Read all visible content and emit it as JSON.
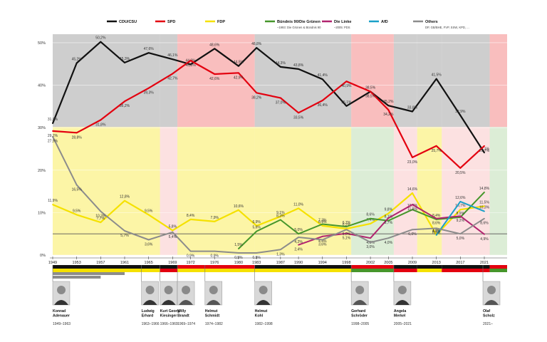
{
  "legend": [
    {
      "name": "CDU/CSU",
      "note": "",
      "color": "#111111"
    },
    {
      "name": "SPD",
      "note": "",
      "color": "#e3000f"
    },
    {
      "name": "FDP",
      "note": "",
      "color": "#f5e100"
    },
    {
      "name": "Bündnis 90/Die Grünen",
      "note": "–1993: Die Grünen & Bündnis 90",
      "color": "#46962b"
    },
    {
      "name": "Die Linke",
      "note": "–2005: PDS",
      "color": "#b1246f"
    },
    {
      "name": "AfD",
      "note": "",
      "color": "#1aa0c8"
    },
    {
      "name": "Others",
      "note": "DP, GB/BHE, FVP, SSW, KPD, ...",
      "color": "#8c8c8c"
    }
  ],
  "chart_data": {
    "type": "line",
    "years": [
      1949,
      1953,
      1957,
      1961,
      1965,
      1969,
      1972,
      1976,
      1980,
      1983,
      1987,
      1990,
      1994,
      1998,
      2002,
      2005,
      2009,
      2013,
      2017,
      2021
    ],
    "ylim": [
      0,
      52
    ],
    "yticks": [
      0,
      10,
      20,
      30,
      40,
      50
    ],
    "ytick_labels": [
      "0%",
      "10%",
      "20%",
      "30%",
      "40%",
      "50%"
    ],
    "threshold": 5,
    "series": [
      {
        "name": "CDU/CSU",
        "color": "#111111",
        "width": 2.2,
        "points": [
          [
            1949,
            31.0
          ],
          [
            1953,
            45.2
          ],
          [
            1957,
            50.2
          ],
          [
            1961,
            45.3
          ],
          [
            1965,
            47.6
          ],
          [
            1969,
            46.1
          ],
          [
            1972,
            44.9
          ],
          [
            1976,
            48.6
          ],
          [
            1980,
            44.5
          ],
          [
            1983,
            48.8
          ],
          [
            1987,
            44.3
          ],
          [
            1990,
            43.8
          ],
          [
            1994,
            41.4
          ],
          [
            1998,
            35.1
          ],
          [
            2002,
            38.5
          ],
          [
            2005,
            35.2
          ],
          [
            2009,
            33.8
          ],
          [
            2013,
            41.5
          ],
          [
            2017,
            32.9
          ],
          [
            2021,
            24.1
          ]
        ],
        "labels": [
          "31,0%",
          "45,2%",
          "50,2%",
          "45,3%",
          "47,6%",
          "46,1%",
          "44,9%",
          "48,6%",
          "44,5%",
          "48,8%",
          "44,3%",
          "43,8%",
          "41,4%",
          "35,1%",
          "38,5%",
          "35,2%",
          "33,8%",
          "41,5%",
          "32,9%",
          "24,1%"
        ]
      },
      {
        "name": "SPD",
        "color": "#e3000f",
        "width": 2.2,
        "points": [
          [
            1949,
            29.2
          ],
          [
            1953,
            28.8
          ],
          [
            1957,
            31.8
          ],
          [
            1961,
            36.2
          ],
          [
            1965,
            39.3
          ],
          [
            1969,
            42.7
          ],
          [
            1972,
            45.8
          ],
          [
            1976,
            42.6
          ],
          [
            1980,
            42.9
          ],
          [
            1983,
            38.2
          ],
          [
            1987,
            37.0
          ],
          [
            1990,
            33.5
          ],
          [
            1994,
            36.4
          ],
          [
            1998,
            40.9
          ],
          [
            2002,
            38.5
          ],
          [
            2005,
            34.2
          ],
          [
            2009,
            23.0
          ],
          [
            2013,
            25.7
          ],
          [
            2017,
            20.5
          ],
          [
            2021,
            25.7
          ]
        ],
        "labels": [
          "29,2%",
          "28,8%",
          "31,8%",
          "36,2%",
          "39,3%",
          "42,7%",
          "45,8%",
          "42,6%",
          "42,9%",
          "38,2%",
          "37,0%",
          "33,5%",
          "36,4%",
          "40,9%",
          "38,5%",
          "34,2%",
          "23,0%",
          "25,7%",
          "20,5%",
          "25,7%"
        ]
      },
      {
        "name": "FDP",
        "color": "#f5e100",
        "width": 2.2,
        "points": [
          [
            1949,
            11.9
          ],
          [
            1953,
            9.5
          ],
          [
            1957,
            7.7
          ],
          [
            1961,
            12.8
          ],
          [
            1965,
            9.5
          ],
          [
            1969,
            5.8
          ],
          [
            1972,
            8.4
          ],
          [
            1976,
            7.9
          ],
          [
            1980,
            10.6
          ],
          [
            1983,
            6.9
          ],
          [
            1987,
            9.1
          ],
          [
            1990,
            11.0
          ],
          [
            1994,
            6.9
          ],
          [
            1998,
            6.2
          ],
          [
            2002,
            7.4
          ],
          [
            2005,
            9.8
          ],
          [
            2009,
            14.6
          ],
          [
            2013,
            4.8
          ],
          [
            2017,
            10.7
          ],
          [
            2021,
            11.5
          ]
        ],
        "labels": [
          "11,9%",
          "9,5%",
          "7,7%",
          "12,8%",
          "9,5%",
          "5,8%",
          "8,4%",
          "7,9%",
          "10,6%",
          "6,9%",
          "9,1%",
          "11,0%",
          "6,9%",
          "6,2%",
          "7,4%",
          "9,8%",
          "14,6%",
          "4,8%",
          "10,7%",
          "11,5%"
        ]
      },
      {
        "name": "Bündnis 90/Die Grünen",
        "color": "#46962b",
        "width": 2.0,
        "points": [
          [
            1980,
            1.5
          ],
          [
            1983,
            5.6
          ],
          [
            1987,
            8.3
          ],
          [
            1990,
            5.0
          ],
          [
            1994,
            7.3
          ],
          [
            1998,
            6.7
          ],
          [
            2002,
            8.6
          ],
          [
            2005,
            8.1
          ],
          [
            2009,
            10.7
          ],
          [
            2013,
            8.4
          ],
          [
            2017,
            8.9
          ],
          [
            2021,
            14.8
          ]
        ],
        "labels": [
          "1,5%",
          "5,6%",
          "8,3%",
          "5,0%",
          "7,3%",
          "6,7%",
          "8,6%",
          "8,1%",
          "10,7%",
          "8,4%",
          "8,9%",
          "14,8%"
        ]
      },
      {
        "name": "Die Linke",
        "color": "#b1246f",
        "width": 2.0,
        "points": [
          [
            1990,
            2.4
          ],
          [
            1994,
            4.4
          ],
          [
            1998,
            5.1
          ],
          [
            2002,
            4.0
          ],
          [
            2005,
            8.7
          ],
          [
            2009,
            11.9
          ],
          [
            2013,
            8.6
          ],
          [
            2017,
            9.2
          ],
          [
            2021,
            4.9
          ]
        ],
        "labels": [
          "2,4%",
          "4,4%",
          "5,1%",
          "4,0%",
          "8,7%",
          "11,9%",
          "8,6%",
          "9,2%",
          "4,9%"
        ]
      },
      {
        "name": "AfD",
        "color": "#1aa0c8",
        "width": 2.0,
        "points": [
          [
            2013,
            4.7
          ],
          [
            2017,
            12.6
          ],
          [
            2021,
            10.3
          ]
        ],
        "labels": [
          "4,7%",
          "12,6%",
          "10,3%"
        ]
      },
      {
        "name": "Others",
        "color": "#8c8c8c",
        "width": 2.0,
        "points": [
          [
            1949,
            27.9
          ],
          [
            1953,
            16.5
          ],
          [
            1957,
            10.3
          ],
          [
            1961,
            5.7
          ],
          [
            1965,
            3.6
          ],
          [
            1969,
            5.4
          ],
          [
            1972,
            0.9
          ],
          [
            1976,
            0.9
          ],
          [
            1980,
            0.5
          ],
          [
            1983,
            0.5
          ],
          [
            1987,
            1.3
          ],
          [
            1990,
            4.2
          ],
          [
            1994,
            3.6
          ],
          [
            1998,
            6.0
          ],
          [
            2002,
            3.0
          ],
          [
            2005,
            4.0
          ],
          [
            2009,
            6.0
          ],
          [
            2013,
            6.3
          ],
          [
            2017,
            5.0
          ],
          [
            2021,
            8.6
          ]
        ],
        "labels": [
          "27,9%",
          "16,5%",
          "10,3%",
          "5,7%",
          "3,6%",
          "5,4%",
          "0,9%",
          "0,9%",
          "0,5%",
          "0,5%",
          "1,3%",
          "4,2%",
          "3,6%",
          "6,0%",
          "3,0%",
          "4,0%",
          "6,0%",
          "6,3%",
          "5,0%",
          "8,6%"
        ]
      }
    ],
    "coalitions": [
      {
        "from": 1949,
        "to": 1966.9,
        "colors": [
          "#bdbdbd",
          "#f5e100"
        ]
      },
      {
        "from": 1966.9,
        "to": 1969.8,
        "colors": [
          "#bdbdbd",
          "#f7a8a8"
        ]
      },
      {
        "from": 1969.8,
        "to": 1982.7,
        "colors": [
          "#f7a8a8",
          "#f5e100"
        ]
      },
      {
        "from": 1982.7,
        "to": 1998.8,
        "colors": [
          "#bdbdbd",
          "#f5e100"
        ]
      },
      {
        "from": 1998.8,
        "to": 2005.9,
        "colors": [
          "#f7a8a8",
          "#9ccc8a"
        ]
      },
      {
        "from": 2005.9,
        "to": 2009.8,
        "colors": [
          "#bdbdbd",
          "#f7a8a8"
        ]
      },
      {
        "from": 2009.8,
        "to": 2013.9,
        "colors": [
          "#bdbdbd",
          "#f5e100"
        ]
      },
      {
        "from": 2013.9,
        "to": 2021.9,
        "colors": [
          "#bdbdbd",
          "#f7a8a8"
        ]
      },
      {
        "from": 2021.9,
        "to": 2022.5,
        "colors": [
          "#f7a8a8",
          "#9ccc8a"
        ]
      }
    ],
    "chancellors": [
      {
        "name": "Konrad\nAdenauer",
        "term": "1949–1963",
        "start": 1949,
        "party_color": "#111111"
      },
      {
        "name": "Ludwig\nErhard",
        "term": "1963–1966",
        "start": 1963.8,
        "party_color": "#111111"
      },
      {
        "name": "Kurt Georg\nKiesinger",
        "term": "1966–1969",
        "start": 1966.9,
        "party_color": "#111111"
      },
      {
        "name": "Willy\nBrandt",
        "term": "1969–1974",
        "start": 1969.8,
        "party_color": "#e3000f"
      },
      {
        "name": "Helmut\nSchmidt",
        "term": "1974–1982",
        "start": 1974.4,
        "party_color": "#e3000f"
      },
      {
        "name": "Helmut\nKohl",
        "term": "1982–1998",
        "start": 1982.7,
        "party_color": "#111111"
      },
      {
        "name": "Gerhard\nSchröder",
        "term": "1998–2005",
        "start": 1998.8,
        "party_color": "#e3000f"
      },
      {
        "name": "Angela\nMerkel",
        "term": "2005–2021",
        "start": 2005.9,
        "party_color": "#111111"
      },
      {
        "name": "Olaf\nScholz",
        "term": "2021–",
        "start": 2021.9,
        "party_color": "#e3000f"
      }
    ]
  }
}
